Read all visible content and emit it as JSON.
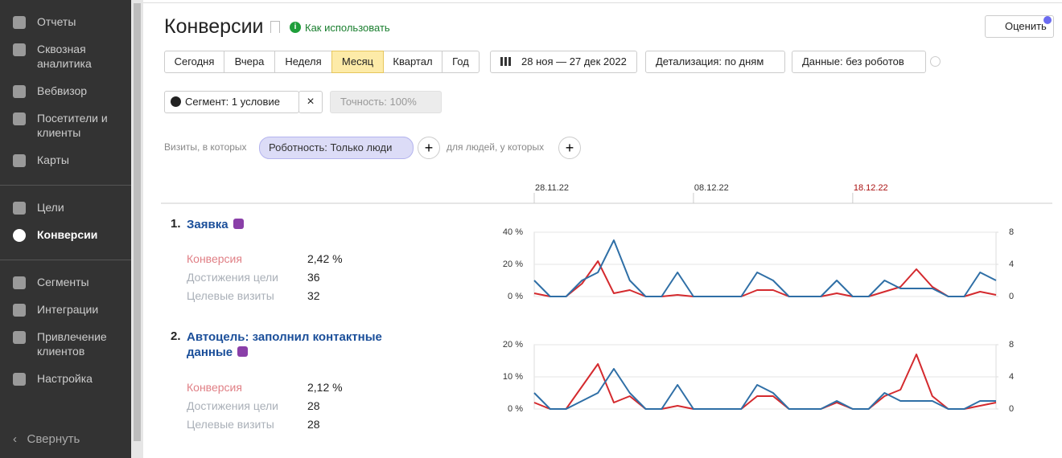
{
  "sidebar": {
    "groups": [
      [
        "Отчеты",
        "Сквозная аналитика",
        "Вебвизор",
        "Посетители и клиенты",
        "Карты"
      ],
      [
        "Цели",
        "Конверсии"
      ],
      [
        "Сегменты",
        "Интеграции",
        "Привлечение клиентов",
        "Настройка"
      ]
    ],
    "active": "Конверсии",
    "collapse": "Свернуть"
  },
  "header": {
    "title": "Конверсии",
    "help": "Как использовать",
    "rate": "Оценить"
  },
  "toolbar": {
    "periods": [
      "Сегодня",
      "Вчера",
      "Неделя",
      "Месяц",
      "Квартал",
      "Год"
    ],
    "active_period": "Месяц",
    "date_range": "28 ноя — 27 дек 2022",
    "detail": "Детализация: по дням",
    "data_filter": "Данные: без роботов",
    "segment": "Сегмент: 1 условие",
    "accuracy": "Точность: 100%"
  },
  "filters": {
    "visits_label": "Визиты, в которых",
    "chip": "Роботность: Только люди",
    "people_label": "для людей, у которых"
  },
  "timeline": {
    "ticks": [
      {
        "index": 0,
        "label": "28.11.22"
      },
      {
        "index": 10,
        "label": "08.12.22"
      },
      {
        "index": 20,
        "label": "18.12.22"
      }
    ]
  },
  "goals": [
    {
      "number": "1.",
      "title": "Заявка",
      "metrics": [
        [
          "Конверсия",
          "2,42 %"
        ],
        [
          "Достижения цели",
          "36"
        ],
        [
          "Целевые визиты",
          "32"
        ]
      ],
      "chart": {
        "type": "line",
        "ylim": [
          0,
          40
        ],
        "yticks": [
          {
            "value": 0,
            "label": "0 %"
          },
          {
            "value": 20,
            "label": "20 %"
          },
          {
            "value": 40,
            "label": "40 %"
          }
        ],
        "y2lim": [
          0,
          8
        ],
        "y2ticks": [
          0,
          4,
          8
        ],
        "series": [
          {
            "color": "#d42a2e",
            "values": [
              2,
              0,
              0,
              8,
              22,
              2,
              4,
              0,
              0,
              1,
              0,
              0,
              0,
              0,
              4,
              4,
              0,
              0,
              0,
              2,
              0,
              0,
              3,
              6,
              17,
              6,
              0,
              0,
              3,
              1
            ]
          },
          {
            "color": "#2f6fa6",
            "axis": "y2",
            "values": [
              2,
              0,
              0,
              2,
              3,
              7,
              2,
              0,
              0,
              3,
              0,
              0,
              0,
              0,
              3,
              2,
              0,
              0,
              0,
              2,
              0,
              0,
              2,
              1,
              1,
              1,
              0,
              0,
              3,
              2
            ]
          }
        ]
      }
    },
    {
      "number": "2.",
      "title": "Автоцель: заполнил контактные данные",
      "metrics": [
        [
          "Конверсия",
          "2,12 %"
        ],
        [
          "Достижения цели",
          "28"
        ],
        [
          "Целевые визиты",
          "28"
        ]
      ],
      "chart": {
        "type": "line",
        "ylim": [
          0,
          20
        ],
        "yticks": [
          {
            "value": 0,
            "label": "0 %"
          },
          {
            "value": 10,
            "label": "10 %"
          },
          {
            "value": 20,
            "label": "20 %"
          }
        ],
        "y2lim": [
          0,
          8
        ],
        "y2ticks": [
          0,
          4,
          8
        ],
        "series": [
          {
            "color": "#d42a2e",
            "values": [
              2,
              0,
              0,
              7,
              14,
              2,
              4,
              0,
              0,
              1,
              0,
              0,
              0,
              0,
              4,
              4,
              0,
              0,
              0,
              2,
              0,
              0,
              4,
              6,
              17,
              4,
              0,
              0,
              1,
              2
            ]
          },
          {
            "color": "#2f6fa6",
            "axis": "y2",
            "values": [
              2,
              0,
              0,
              1,
              2,
              5,
              2,
              0,
              0,
              3,
              0,
              0,
              0,
              0,
              3,
              2,
              0,
              0,
              0,
              1,
              0,
              0,
              2,
              1,
              1,
              1,
              0,
              0,
              1,
              1
            ]
          }
        ]
      }
    }
  ]
}
